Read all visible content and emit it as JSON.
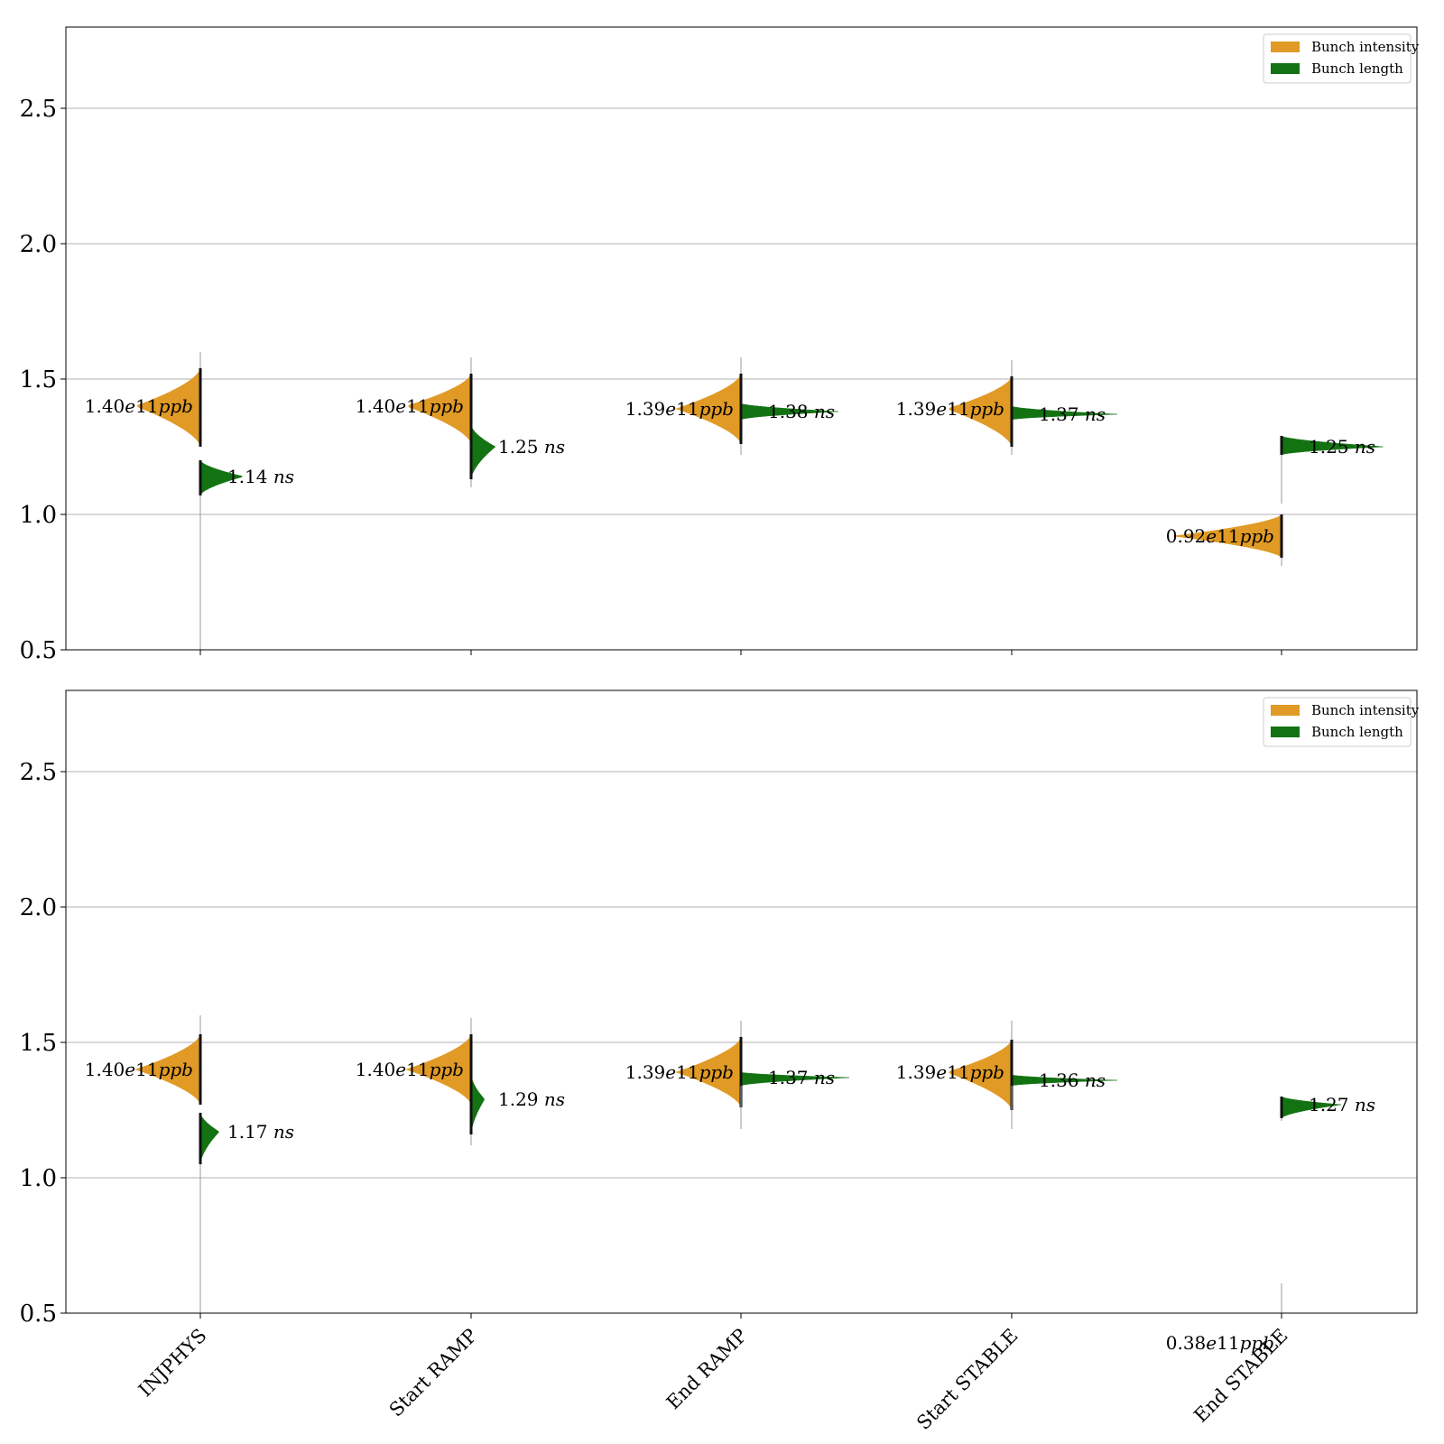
{
  "colors": {
    "intensity": "#e09a25",
    "length": "#137313",
    "grid": "#b0b0b0",
    "axis": "#000000"
  },
  "chart_data": [
    {
      "type": "violin",
      "panel": "top",
      "categories": [
        "INJPHYS",
        "Start RAMP",
        "End RAMP",
        "Start STABLE",
        "End STABLE"
      ],
      "ylim": [
        0.5,
        2.8
      ],
      "yticks": [
        "0.5",
        "1.0",
        "1.5",
        "2.0",
        "2.5"
      ],
      "grid": "horizontal",
      "legend": {
        "placement": "top-right",
        "entries": [
          {
            "label": "Bunch intensity",
            "color": "#e09a25"
          },
          {
            "label": "Bunch length",
            "color": "#137313"
          }
        ]
      },
      "series": [
        {
          "name": "Bunch intensity",
          "side": "left",
          "violins": [
            {
              "category": "INJPHYS",
              "mode": 1.4,
              "range": [
                1.25,
                1.54
              ],
              "tails": [
                1.28,
                1.6
              ],
              "width": 0.24,
              "label": "1.40e11ppb"
            },
            {
              "category": "Start RAMP",
              "mode": 1.4,
              "range": [
                1.26,
                1.52
              ],
              "tails": [
                1.28,
                1.58
              ],
              "width": 0.24,
              "label": "1.40e11ppb"
            },
            {
              "category": "End RAMP",
              "mode": 1.39,
              "range": [
                1.26,
                1.52
              ],
              "tails": [
                1.22,
                1.58
              ],
              "width": 0.24,
              "label": "1.39e11ppb"
            },
            {
              "category": "Start STABLE",
              "mode": 1.39,
              "range": [
                1.25,
                1.51
              ],
              "tails": [
                1.22,
                1.57
              ],
              "width": 0.24,
              "label": "1.39e11ppb"
            },
            {
              "category": "End STABLE",
              "mode": 0.92,
              "range": [
                0.84,
                1.0
              ],
              "tails": [
                0.81,
                1.0
              ],
              "width": 0.4,
              "label": "0.92e11ppb"
            }
          ]
        },
        {
          "name": "Bunch length",
          "side": "right",
          "violins": [
            {
              "category": "INJPHYS",
              "mode": 1.14,
              "range": [
                1.07,
                1.2
              ],
              "tails": [
                0.5,
                1.2
              ],
              "width": 0.16,
              "label": "1.14 ns"
            },
            {
              "category": "Start RAMP",
              "mode": 1.25,
              "range": [
                1.13,
                1.33
              ],
              "tails": [
                1.1,
                1.33
              ],
              "width": 0.09,
              "label": "1.25 ns"
            },
            {
              "category": "End RAMP",
              "mode": 1.38,
              "range": [
                1.35,
                1.41
              ],
              "tails": [
                1.35,
                1.41
              ],
              "width": 0.36,
              "label": "1.38 ns"
            },
            {
              "category": "Start STABLE",
              "mode": 1.37,
              "range": [
                1.35,
                1.4
              ],
              "tails": [
                1.35,
                1.4
              ],
              "width": 0.39,
              "label": "1.37 ns"
            },
            {
              "category": "End STABLE",
              "mode": 1.25,
              "range": [
                1.22,
                1.29
              ],
              "tails": [
                1.04,
                1.29
              ],
              "width": 0.38,
              "label": "1.25 ns"
            }
          ]
        }
      ]
    },
    {
      "type": "violin",
      "panel": "bottom",
      "categories": [
        "INJPHYS",
        "Start RAMP",
        "End RAMP",
        "Start STABLE",
        "End STABLE"
      ],
      "ylim": [
        0.5,
        2.8
      ],
      "yticks": [
        "0.5",
        "1.0",
        "1.5",
        "2.0",
        "2.5"
      ],
      "grid": "horizontal",
      "legend": {
        "placement": "top-right",
        "entries": [
          {
            "label": "Bunch intensity",
            "color": "#e09a25"
          },
          {
            "label": "Bunch length",
            "color": "#137313"
          }
        ]
      },
      "series": [
        {
          "name": "Bunch intensity",
          "side": "left",
          "violins": [
            {
              "category": "INJPHYS",
              "mode": 1.4,
              "range": [
                1.27,
                1.53
              ],
              "tails": [
                1.27,
                1.6
              ],
              "width": 0.24,
              "label": "1.40e11ppb"
            },
            {
              "category": "Start RAMP",
              "mode": 1.4,
              "range": [
                1.27,
                1.53
              ],
              "tails": [
                1.27,
                1.59
              ],
              "width": 0.24,
              "label": "1.40e11ppb"
            },
            {
              "category": "End RAMP",
              "mode": 1.39,
              "range": [
                1.26,
                1.52
              ],
              "tails": [
                1.26,
                1.58
              ],
              "width": 0.24,
              "label": "1.39e11ppb"
            },
            {
              "category": "Start STABLE",
              "mode": 1.39,
              "range": [
                1.25,
                1.51
              ],
              "tails": [
                1.25,
                1.58
              ],
              "width": 0.24,
              "label": "1.39e11ppb"
            },
            {
              "category": "End STABLE",
              "mode": 0.38,
              "range": [
                0.38,
                0.38
              ],
              "tails": [
                0.5,
                0.61
              ],
              "width": 0.0,
              "label": "0.38e11ppb"
            }
          ]
        },
        {
          "name": "Bunch length",
          "side": "right",
          "violins": [
            {
              "category": "INJPHYS",
              "mode": 1.17,
              "range": [
                1.05,
                1.24
              ],
              "tails": [
                0.5,
                1.24
              ],
              "width": 0.07,
              "label": "1.17 ns"
            },
            {
              "category": "Start RAMP",
              "mode": 1.29,
              "range": [
                1.16,
                1.38
              ],
              "tails": [
                1.12,
                1.38
              ],
              "width": 0.05,
              "label": "1.29 ns"
            },
            {
              "category": "End RAMP",
              "mode": 1.37,
              "range": [
                1.34,
                1.39
              ],
              "tails": [
                1.18,
                1.39
              ],
              "width": 0.4,
              "label": "1.37 ns"
            },
            {
              "category": "Start STABLE",
              "mode": 1.36,
              "range": [
                1.34,
                1.38
              ],
              "tails": [
                1.18,
                1.38
              ],
              "width": 0.39,
              "label": "1.36 ns"
            },
            {
              "category": "End STABLE",
              "mode": 1.27,
              "range": [
                1.22,
                1.3
              ],
              "tails": [
                1.21,
                1.3
              ],
              "width": 0.22,
              "label": "1.27 ns"
            }
          ]
        }
      ]
    }
  ]
}
